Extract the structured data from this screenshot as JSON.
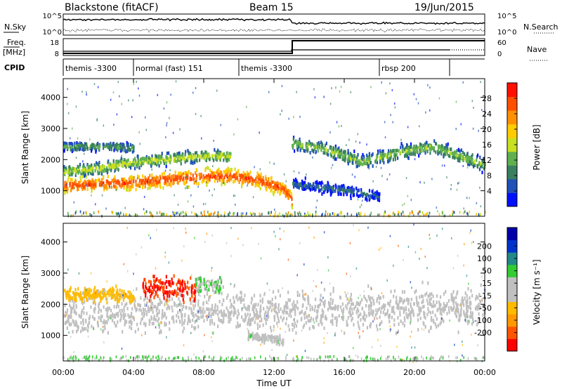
{
  "header": {
    "station": "Blackstone (fitACF)",
    "beam": "Beam 15",
    "date": "19/Jun/2015"
  },
  "status_panels": {
    "nsky_label": "N.Sky",
    "nsearch_label": "N.Search",
    "freq_label_1": "Freq.",
    "freq_label_2": "[MHz]",
    "nave_label": "Nave",
    "cpid_label": "CPID",
    "noise_ticks": [
      "10^5",
      "10^0"
    ],
    "freq_ticks": [
      "18",
      "8"
    ],
    "nave_ticks": [
      "60",
      "0"
    ]
  },
  "cpid_segments": [
    {
      "name": "themis -3300",
      "start_h": 0.0,
      "end_h": 4.0
    },
    {
      "name": "normal (fast) 151",
      "start_h": 4.0,
      "end_h": 10.0
    },
    {
      "name": "themis -3300",
      "start_h": 10.0,
      "end_h": 18.0
    },
    {
      "name": "rbsp 200",
      "start_h": 18.0,
      "end_h": 22.0
    },
    {
      "name": "",
      "start_h": 22.0,
      "end_h": 24.0
    }
  ],
  "chart_data": [
    {
      "type": "heatmap",
      "panel": "power",
      "ylabel": "Slant Range [km]",
      "colorbar_label": "Power [dB]",
      "colorbar_ticks": [
        "28",
        "24",
        "20",
        "16",
        "12",
        "8",
        "4"
      ],
      "colorbar_range": [
        0,
        30
      ],
      "ylim": [
        180,
        4600
      ],
      "yticks": [
        "4000",
        "3000",
        "2000",
        "1000"
      ],
      "xlim_hours": [
        0,
        24
      ],
      "colors": [
        "#0010ff",
        "#2050b8",
        "#3a8060",
        "#60b050",
        "#c8e020",
        "#ffcc00",
        "#ff9000",
        "#ff5000",
        "#ff1000"
      ],
      "echo_bands": [
        {
          "t": [
            0,
            4,
            6,
            8,
            9.5,
            11,
            12.5,
            13
          ],
          "center_km": [
            1150,
            1250,
            1350,
            1450,
            1450,
            1350,
            1050,
            700
          ],
          "width_km": 350,
          "power_db": 26
        },
        {
          "t": [
            0,
            2,
            4,
            8,
            9.5
          ],
          "center_km": [
            1600,
            1700,
            1900,
            2100,
            2100
          ],
          "width_km": 250,
          "power_db": 16
        },
        {
          "t": [
            0,
            3,
            4
          ],
          "center_km": [
            2400,
            2400,
            2350
          ],
          "width_km": 200,
          "power_db": 12
        },
        {
          "t": [
            13,
            15,
            17,
            19,
            21,
            24
          ],
          "center_km": [
            2500,
            2300,
            1900,
            2200,
            2400,
            1800
          ],
          "width_km": 300,
          "power_db": 14
        },
        {
          "t": [
            13,
            16,
            18
          ],
          "center_km": [
            1200,
            1000,
            800
          ],
          "width_km": 250,
          "power_db": 8
        }
      ]
    },
    {
      "type": "heatmap",
      "panel": "velocity",
      "ylabel": "Slant Range [km]",
      "xlabel": "Time UT",
      "colorbar_label": "Velocity [m s⁻¹]",
      "colorbar_ticks": [
        "200",
        "100",
        "50",
        "15",
        "-15",
        "-50",
        "-100",
        "-200"
      ],
      "colorbar_range": [
        -250,
        250
      ],
      "ylim": [
        180,
        4600
      ],
      "yticks": [
        "4000",
        "3000",
        "2000",
        "1000"
      ],
      "xlim_hours": [
        0,
        24
      ],
      "xticks": [
        "00:00",
        "04:00",
        "08:00",
        "12:00",
        "16:00",
        "20:00",
        "00:00"
      ],
      "colors": [
        "#ff0000",
        "#ff5500",
        "#ff9900",
        "#ffbb00",
        "#c0c0c0",
        "#c0c0c0",
        "#33cc33",
        "#228888",
        "#0033cc",
        "#0000aa"
      ],
      "echo_bands": [
        {
          "t": [
            0,
            4,
            8,
            10,
            12,
            24
          ],
          "center_km": [
            1600,
            1700,
            1800,
            1800,
            1700,
            1900
          ],
          "width_km": 900,
          "velocity": 0
        },
        {
          "t": [
            0,
            3,
            4
          ],
          "center_km": [
            2300,
            2300,
            2200
          ],
          "width_km": 300,
          "velocity": -60
        },
        {
          "t": [
            4.5,
            6,
            7.5
          ],
          "center_km": [
            2500,
            2500,
            2400
          ],
          "width_km": 500,
          "velocity": -200
        },
        {
          "t": [
            7.5,
            9
          ],
          "center_km": [
            2600,
            2600
          ],
          "width_km": 400,
          "velocity": 50
        },
        {
          "t": [
            10.5,
            12.5
          ],
          "center_km": [
            1000,
            800
          ],
          "width_km": 200,
          "velocity": 40
        }
      ]
    }
  ]
}
